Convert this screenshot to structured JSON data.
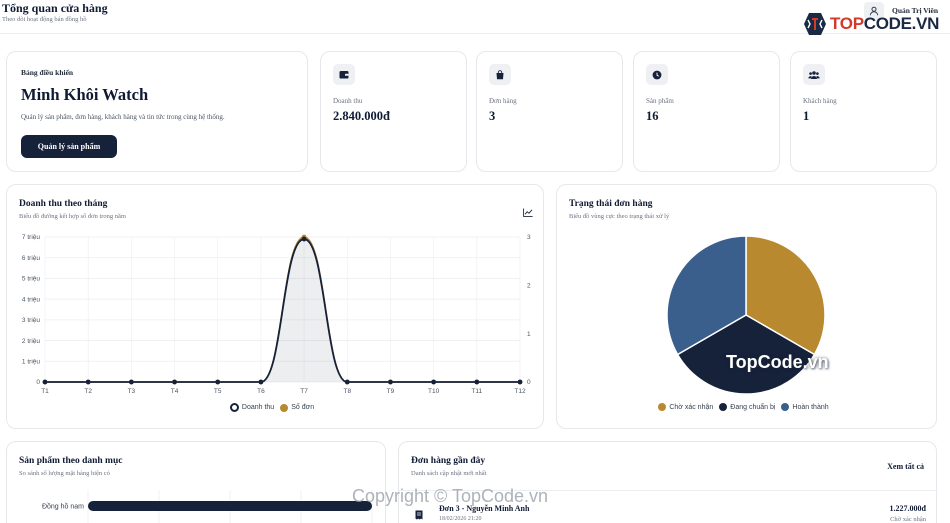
{
  "header": {
    "title": "Tổng quan cửa hàng",
    "subtitle": "Theo dõi hoạt động bán đồng hồ",
    "user_name": "Quản Trị Viên"
  },
  "branding": {
    "logo_text_prefix": "TOP",
    "logo_text_suffix": "CODE.VN",
    "watermark_center": "TopCode.vn",
    "watermark_bottom": "Copyright © TopCode.vn"
  },
  "hero": {
    "kicker": "Bảng điều khiển",
    "title": "Minh Khôi Watch",
    "description": "Quản lý sản phẩm, đơn hàng, khách hàng và tin tức trong cùng hệ thống.",
    "button_label": "Quản lý sản phẩm"
  },
  "stats": [
    {
      "label": "Doanh thu",
      "value": "2.840.000đ",
      "icon": "wallet-icon"
    },
    {
      "label": "Đơn hàng",
      "value": "3",
      "icon": "shopping-bag-icon"
    },
    {
      "label": "Sản phẩm",
      "value": "16",
      "icon": "clock-icon"
    },
    {
      "label": "Khách hàng",
      "value": "1",
      "icon": "users-icon"
    }
  ],
  "revenue_card": {
    "title": "Doanh thu theo tháng",
    "subtitle": "Biểu đồ đường kết hợp số đơn trong năm"
  },
  "status_card": {
    "title": "Trạng thái đơn hàng",
    "subtitle": "Biểu đồ vùng cực theo trạng thái xử lý"
  },
  "category_card": {
    "title": "Sản phẩm theo danh mục",
    "subtitle": "So sánh số lượng mặt hàng hiện có"
  },
  "recent_orders": {
    "title": "Đơn hàng gần đây",
    "subtitle": "Danh sách cập nhật mới nhất",
    "view_all": "Xem tất cả",
    "items": [
      {
        "name": "Đơn 3 - Nguyễn Minh Anh",
        "date": "18/02/2026 21:20",
        "amount": "1.227.000đ",
        "status": "Chờ xác nhận"
      }
    ]
  },
  "colors": {
    "navy": "#16213a",
    "gold": "#b8892f",
    "blue": "#3a5f8c",
    "grid": "#eceef2"
  },
  "chart_data": [
    {
      "type": "line",
      "x": [
        "T1",
        "T2",
        "T3",
        "T4",
        "T5",
        "T6",
        "T7",
        "T8",
        "T9",
        "T10",
        "T11",
        "T12"
      ],
      "y_ticks_left": [
        "0",
        "1 triệu",
        "2 triệu",
        "3 triệu",
        "4 triệu",
        "5 triệu",
        "6 triệu",
        "7 triệu"
      ],
      "y_ticks_right": [
        "0",
        "1",
        "2",
        "3"
      ],
      "ylim": [
        0,
        7000000
      ],
      "ylim_right": [
        0,
        3
      ],
      "grid": true,
      "legend_position": "bottom",
      "series": [
        {
          "name": "Doanh thu",
          "axis": "left",
          "color": "#16213a",
          "fill": true,
          "values": [
            0,
            0,
            0,
            0,
            0,
            0,
            6900000,
            0,
            0,
            0,
            0,
            0
          ]
        },
        {
          "name": "Số đơn",
          "axis": "right",
          "color": "#b8892f",
          "values": [
            0,
            0,
            0,
            0,
            0,
            0,
            3,
            0,
            0,
            0,
            0,
            0
          ]
        }
      ]
    },
    {
      "type": "pie",
      "labels": [
        "Chờ xác nhận",
        "Đang chuẩn bị",
        "Hoàn thành"
      ],
      "values": [
        1,
        1,
        1
      ],
      "colors": [
        "#b8892f",
        "#16213a",
        "#3a5f8c"
      ],
      "legend_position": "bottom"
    },
    {
      "type": "bar",
      "orientation": "horizontal",
      "categories": [
        "Đồng hồ nam"
      ],
      "values": [
        1
      ]
    }
  ]
}
